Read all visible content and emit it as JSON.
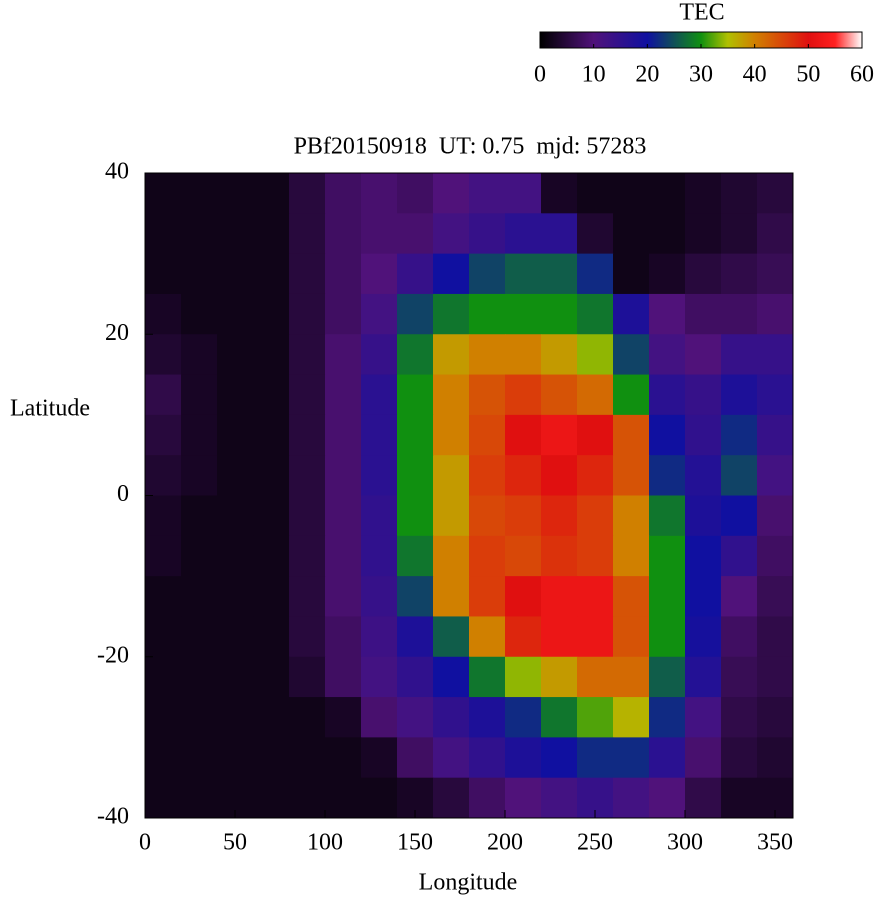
{
  "chart_data": {
    "type": "heatmap",
    "title": "PBf20150918  UT: 0.75  mjd: 57283",
    "x_label": "Longitude",
    "y_label": "Latitude",
    "colorbar_label": "TEC",
    "xlim": [
      0,
      360
    ],
    "ylim": [
      -40,
      40
    ],
    "xticks": [
      0,
      50,
      100,
      150,
      200,
      250,
      300,
      350
    ],
    "yticks": [
      -40,
      -20,
      0,
      20,
      40
    ],
    "colorbar_lim": [
      0,
      60
    ],
    "colorbar_ticks": [
      0,
      10,
      20,
      30,
      40,
      50,
      60
    ],
    "colorscale": [
      [
        0,
        "#000000"
      ],
      [
        10,
        "#50127a"
      ],
      [
        20,
        "#1010a0"
      ],
      [
        30,
        "#109010"
      ],
      [
        35,
        "#b0c000"
      ],
      [
        40,
        "#d08000"
      ],
      [
        50,
        "#e01010"
      ],
      [
        55,
        "#ff2020"
      ],
      [
        60,
        "#ffffff"
      ]
    ],
    "x": [
      10,
      30,
      50,
      70,
      90,
      110,
      130,
      150,
      170,
      190,
      210,
      230,
      250,
      270,
      290,
      310,
      330,
      350
    ],
    "y": [
      37.5,
      32.5,
      27.5,
      22.5,
      17.5,
      12.5,
      7.5,
      2.5,
      -2.5,
      -7.5,
      -12.5,
      -17.5,
      -22.5,
      -27.5,
      -32.5,
      -37.5
    ],
    "z": [
      [
        2,
        2,
        2,
        2,
        5,
        8,
        9,
        8,
        10,
        12,
        12,
        3,
        2,
        2,
        2,
        3,
        4,
        5
      ],
      [
        2,
        2,
        2,
        2,
        5,
        8,
        9,
        9,
        12,
        14,
        16,
        16,
        4,
        2,
        2,
        3,
        4,
        6
      ],
      [
        2,
        2,
        2,
        2,
        5,
        8,
        10,
        14,
        20,
        24,
        26,
        26,
        22,
        2,
        3,
        5,
        6,
        7
      ],
      [
        3,
        2,
        2,
        2,
        5,
        8,
        12,
        24,
        28,
        30,
        30,
        30,
        28,
        18,
        10,
        8,
        8,
        9
      ],
      [
        4,
        3,
        2,
        2,
        5,
        9,
        14,
        28,
        38,
        40,
        40,
        38,
        34,
        24,
        12,
        10,
        14,
        14
      ],
      [
        6,
        3,
        2,
        2,
        5,
        9,
        16,
        30,
        40,
        44,
        46,
        44,
        42,
        30,
        16,
        14,
        18,
        16
      ],
      [
        5,
        3,
        2,
        2,
        5,
        9,
        16,
        30,
        40,
        45,
        50,
        52,
        50,
        44,
        20,
        15,
        22,
        14
      ],
      [
        4,
        3,
        2,
        2,
        5,
        9,
        16,
        30,
        38,
        46,
        48,
        50,
        48,
        44,
        22,
        17,
        24,
        12
      ],
      [
        3,
        2,
        2,
        2,
        5,
        9,
        15,
        30,
        38,
        45,
        46,
        48,
        46,
        40,
        28,
        18,
        20,
        9
      ],
      [
        3,
        2,
        2,
        2,
        5,
        9,
        15,
        28,
        40,
        46,
        45,
        47,
        46,
        40,
        30,
        20,
        15,
        8
      ],
      [
        2,
        2,
        2,
        2,
        5,
        9,
        14,
        24,
        40,
        46,
        50,
        52,
        52,
        44,
        30,
        20,
        10,
        7
      ],
      [
        2,
        2,
        2,
        2,
        5,
        8,
        13,
        18,
        26,
        40,
        48,
        52,
        52,
        44,
        30,
        19,
        8,
        6
      ],
      [
        2,
        2,
        2,
        2,
        4,
        8,
        12,
        15,
        20,
        28,
        34,
        38,
        42,
        42,
        26,
        17,
        7,
        6
      ],
      [
        2,
        2,
        2,
        2,
        2,
        3,
        9,
        12,
        15,
        18,
        22,
        28,
        32,
        36,
        22,
        12,
        6,
        5
      ],
      [
        2,
        2,
        2,
        2,
        2,
        2,
        3,
        8,
        12,
        15,
        18,
        20,
        22,
        22,
        16,
        9,
        5,
        4
      ],
      [
        2,
        2,
        2,
        2,
        2,
        2,
        2,
        3,
        5,
        8,
        10,
        12,
        14,
        12,
        10,
        6,
        3,
        3
      ]
    ]
  }
}
